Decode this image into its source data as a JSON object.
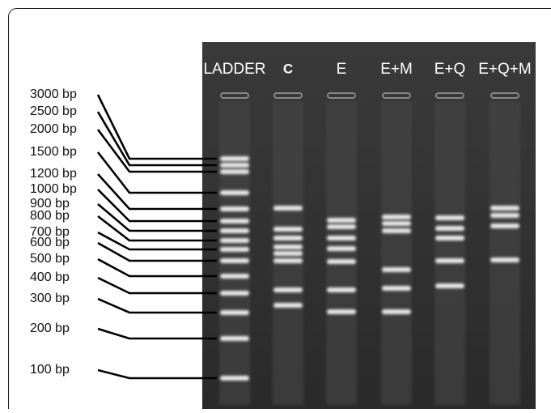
{
  "lanes": [
    "LADDER",
    "C",
    "E",
    "E+M",
    "E+Q",
    "E+Q+M"
  ],
  "ladder_labels": [
    "3000 bp",
    "2500 bp",
    "2000 bp",
    "1500 bp",
    "1200 bp",
    "1000 bp",
    "900 bp",
    "800 bp",
    "700 bp",
    "600 bp",
    "500 bp",
    "400 bp",
    "300 bp",
    "200 bp",
    "100 bp"
  ]
}
